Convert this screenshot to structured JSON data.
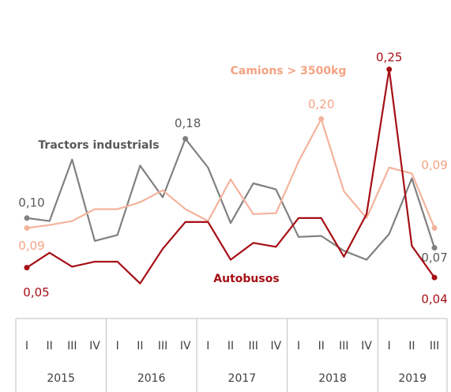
{
  "chart_data": {
    "type": "line",
    "categories": [
      "I",
      "II",
      "III",
      "IV",
      "I",
      "II",
      "III",
      "IV",
      "I",
      "II",
      "III",
      "IV",
      "I",
      "II",
      "III",
      "IV",
      "I",
      "II",
      "III"
    ],
    "years": [
      "2015",
      "2016",
      "2017",
      "2018",
      "2019"
    ],
    "ylim": [
      0.025,
      0.32
    ],
    "series": [
      {
        "name": "Tractors industrials",
        "color": "#808080",
        "values": [
          0.1,
          0.097,
          0.159,
          0.077,
          0.083,
          0.153,
          0.121,
          0.18,
          0.151,
          0.095,
          0.135,
          0.129,
          0.081,
          0.082,
          0.067,
          0.058,
          0.084,
          0.14,
          0.07
        ],
        "value_labels": [
          "0,10",
          null,
          null,
          null,
          null,
          null,
          null,
          "0,18",
          null,
          null,
          null,
          null,
          null,
          null,
          null,
          null,
          null,
          null,
          "0,07"
        ]
      },
      {
        "name": "Camions > 3500kg",
        "color": "#f4b39c",
        "values": [
          0.09,
          0.093,
          0.097,
          0.109,
          0.109,
          0.116,
          0.128,
          0.109,
          0.097,
          0.139,
          0.104,
          0.105,
          0.157,
          0.2,
          0.127,
          0.1,
          0.151,
          0.145,
          0.09
        ],
        "value_labels": [
          "0,09",
          null,
          null,
          null,
          null,
          null,
          null,
          null,
          null,
          null,
          null,
          null,
          null,
          "0,20",
          null,
          null,
          null,
          null,
          "0,09"
        ]
      },
      {
        "name": "Autobusos",
        "color": "#a50f15",
        "values": [
          0.05,
          0.065,
          0.051,
          0.056,
          0.056,
          0.034,
          0.069,
          0.096,
          0.096,
          0.058,
          0.075,
          0.071,
          0.1,
          0.1,
          0.061,
          0.104,
          0.25,
          0.072,
          0.04
        ],
        "value_labels": [
          "0,05",
          null,
          null,
          null,
          null,
          null,
          null,
          null,
          null,
          null,
          null,
          null,
          null,
          null,
          null,
          null,
          "0,25",
          null,
          "0,04"
        ]
      }
    ]
  }
}
